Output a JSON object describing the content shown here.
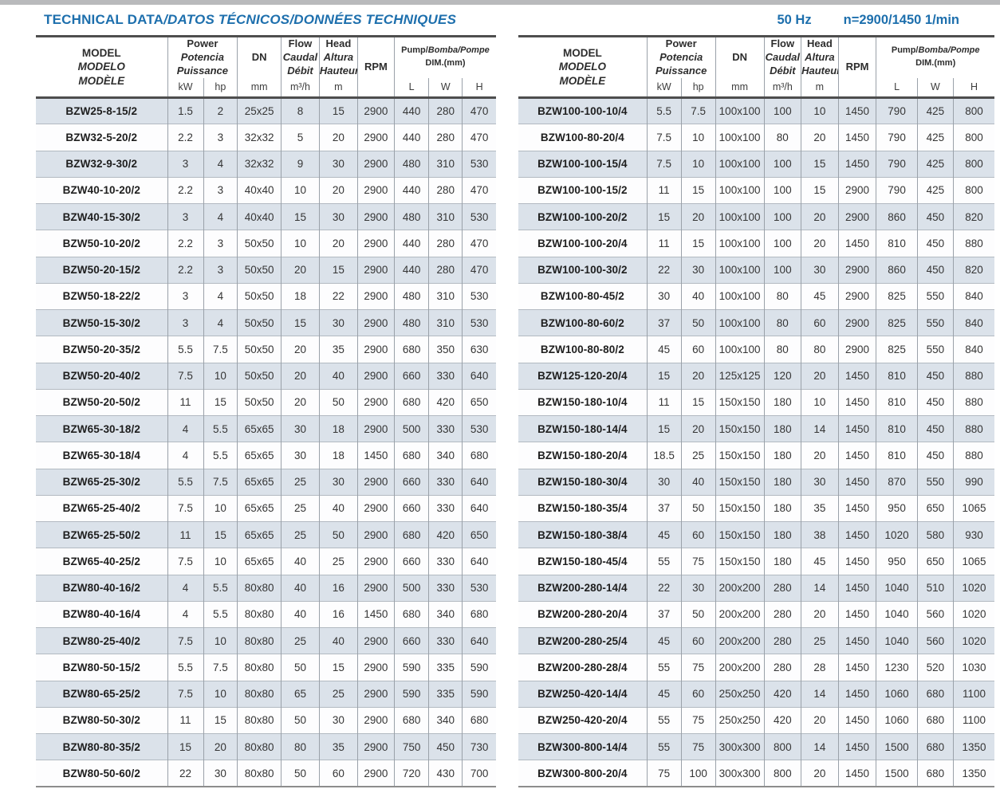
{
  "page": {
    "title_en": "TECHNICAL DATA",
    "title_i18n": "/DATOS TÉCNICOS/DONNÉES TECHNIQUES",
    "frequency": "50 Hz",
    "speed": "n=2900/1450 1/min"
  },
  "colors": {
    "accent_blue": "#1d6fad",
    "rule_dark": "#4e4e4e",
    "rule_bottom": "#8d8d8d",
    "grid_v": "#9aa1a9",
    "grid_h": "#b2b9c1",
    "row_shade": "#dbe2ea",
    "scan_edge": "#b9babc",
    "text_dark": "#3a3a3a"
  },
  "header": {
    "model": [
      "MODEL",
      "MODELO",
      "MODÈLE"
    ],
    "power": [
      "Power",
      "Potencia",
      "Puissance"
    ],
    "dn": "DN",
    "flow": [
      "Flow",
      "Caudal",
      "Débit"
    ],
    "head_col": [
      "Head",
      "Altura",
      "Hauteur"
    ],
    "rpm": "RPM",
    "pump_en": "Pump/",
    "pump_i18n": "Bomba/Pompe",
    "dim_label": "DIM.(mm)",
    "units": {
      "kw": "kW",
      "hp": "hp",
      "dn": "mm",
      "flow": "m³/h",
      "head": "m",
      "l": "L",
      "w": "W",
      "h": "H"
    }
  },
  "left_table": {
    "rows": [
      [
        "BZW25-8-15/2",
        "1.5",
        "2",
        "25x25",
        "8",
        "15",
        "2900",
        "440",
        "280",
        "470"
      ],
      [
        "BZW32-5-20/2",
        "2.2",
        "3",
        "32x32",
        "5",
        "20",
        "2900",
        "440",
        "280",
        "470"
      ],
      [
        "BZW32-9-30/2",
        "3",
        "4",
        "32x32",
        "9",
        "30",
        "2900",
        "480",
        "310",
        "530"
      ],
      [
        "BZW40-10-20/2",
        "2.2",
        "3",
        "40x40",
        "10",
        "20",
        "2900",
        "440",
        "280",
        "470"
      ],
      [
        "BZW40-15-30/2",
        "3",
        "4",
        "40x40",
        "15",
        "30",
        "2900",
        "480",
        "310",
        "530"
      ],
      [
        "BZW50-10-20/2",
        "2.2",
        "3",
        "50x50",
        "10",
        "20",
        "2900",
        "440",
        "280",
        "470"
      ],
      [
        "BZW50-20-15/2",
        "2.2",
        "3",
        "50x50",
        "20",
        "15",
        "2900",
        "440",
        "280",
        "470"
      ],
      [
        "BZW50-18-22/2",
        "3",
        "4",
        "50x50",
        "18",
        "22",
        "2900",
        "480",
        "310",
        "530"
      ],
      [
        "BZW50-15-30/2",
        "3",
        "4",
        "50x50",
        "15",
        "30",
        "2900",
        "480",
        "310",
        "530"
      ],
      [
        "BZW50-20-35/2",
        "5.5",
        "7.5",
        "50x50",
        "20",
        "35",
        "2900",
        "680",
        "350",
        "630"
      ],
      [
        "BZW50-20-40/2",
        "7.5",
        "10",
        "50x50",
        "20",
        "40",
        "2900",
        "660",
        "330",
        "640"
      ],
      [
        "BZW50-20-50/2",
        "11",
        "15",
        "50x50",
        "20",
        "50",
        "2900",
        "680",
        "420",
        "650"
      ],
      [
        "BZW65-30-18/2",
        "4",
        "5.5",
        "65x65",
        "30",
        "18",
        "2900",
        "500",
        "330",
        "530"
      ],
      [
        "BZW65-30-18/4",
        "4",
        "5.5",
        "65x65",
        "30",
        "18",
        "1450",
        "680",
        "340",
        "680"
      ],
      [
        "BZW65-25-30/2",
        "5.5",
        "7.5",
        "65x65",
        "25",
        "30",
        "2900",
        "660",
        "330",
        "640"
      ],
      [
        "BZW65-25-40/2",
        "7.5",
        "10",
        "65x65",
        "25",
        "40",
        "2900",
        "660",
        "330",
        "640"
      ],
      [
        "BZW65-25-50/2",
        "11",
        "15",
        "65x65",
        "25",
        "50",
        "2900",
        "680",
        "420",
        "650"
      ],
      [
        "BZW65-40-25/2",
        "7.5",
        "10",
        "65x65",
        "40",
        "25",
        "2900",
        "660",
        "330",
        "640"
      ],
      [
        "BZW80-40-16/2",
        "4",
        "5.5",
        "80x80",
        "40",
        "16",
        "2900",
        "500",
        "330",
        "530"
      ],
      [
        "BZW80-40-16/4",
        "4",
        "5.5",
        "80x80",
        "40",
        "16",
        "1450",
        "680",
        "340",
        "680"
      ],
      [
        "BZW80-25-40/2",
        "7.5",
        "10",
        "80x80",
        "25",
        "40",
        "2900",
        "660",
        "330",
        "640"
      ],
      [
        "BZW80-50-15/2",
        "5.5",
        "7.5",
        "80x80",
        "50",
        "15",
        "2900",
        "590",
        "335",
        "590"
      ],
      [
        "BZW80-65-25/2",
        "7.5",
        "10",
        "80x80",
        "65",
        "25",
        "2900",
        "590",
        "335",
        "590"
      ],
      [
        "BZW80-50-30/2",
        "11",
        "15",
        "80x80",
        "50",
        "30",
        "2900",
        "680",
        "340",
        "680"
      ],
      [
        "BZW80-80-35/2",
        "15",
        "20",
        "80x80",
        "80",
        "35",
        "2900",
        "750",
        "450",
        "730"
      ],
      [
        "BZW80-50-60/2",
        "22",
        "30",
        "80x80",
        "50",
        "60",
        "2900",
        "720",
        "430",
        "700"
      ]
    ]
  },
  "right_table": {
    "rows": [
      [
        "BZW100-100-10/4",
        "5.5",
        "7.5",
        "100x100",
        "100",
        "10",
        "1450",
        "790",
        "425",
        "800"
      ],
      [
        "BZW100-80-20/4",
        "7.5",
        "10",
        "100x100",
        "80",
        "20",
        "1450",
        "790",
        "425",
        "800"
      ],
      [
        "BZW100-100-15/4",
        "7.5",
        "10",
        "100x100",
        "100",
        "15",
        "1450",
        "790",
        "425",
        "800"
      ],
      [
        "BZW100-100-15/2",
        "11",
        "15",
        "100x100",
        "100",
        "15",
        "2900",
        "790",
        "425",
        "800"
      ],
      [
        "BZW100-100-20/2",
        "15",
        "20",
        "100x100",
        "100",
        "20",
        "2900",
        "860",
        "450",
        "820"
      ],
      [
        "BZW100-100-20/4",
        "11",
        "15",
        "100x100",
        "100",
        "20",
        "1450",
        "810",
        "450",
        "880"
      ],
      [
        "BZW100-100-30/2",
        "22",
        "30",
        "100x100",
        "100",
        "30",
        "2900",
        "860",
        "450",
        "820"
      ],
      [
        "BZW100-80-45/2",
        "30",
        "40",
        "100x100",
        "80",
        "45",
        "2900",
        "825",
        "550",
        "840"
      ],
      [
        "BZW100-80-60/2",
        "37",
        "50",
        "100x100",
        "80",
        "60",
        "2900",
        "825",
        "550",
        "840"
      ],
      [
        "BZW100-80-80/2",
        "45",
        "60",
        "100x100",
        "80",
        "80",
        "2900",
        "825",
        "550",
        "840"
      ],
      [
        "BZW125-120-20/4",
        "15",
        "20",
        "125x125",
        "120",
        "20",
        "1450",
        "810",
        "450",
        "880"
      ],
      [
        "BZW150-180-10/4",
        "11",
        "15",
        "150x150",
        "180",
        "10",
        "1450",
        "810",
        "450",
        "880"
      ],
      [
        "BZW150-180-14/4",
        "15",
        "20",
        "150x150",
        "180",
        "14",
        "1450",
        "810",
        "450",
        "880"
      ],
      [
        "BZW150-180-20/4",
        "18.5",
        "25",
        "150x150",
        "180",
        "20",
        "1450",
        "810",
        "450",
        "880"
      ],
      [
        "BZW150-180-30/4",
        "30",
        "40",
        "150x150",
        "180",
        "30",
        "1450",
        "870",
        "550",
        "990"
      ],
      [
        "BZW150-180-35/4",
        "37",
        "50",
        "150x150",
        "180",
        "35",
        "1450",
        "950",
        "650",
        "1065"
      ],
      [
        "BZW150-180-38/4",
        "45",
        "60",
        "150x150",
        "180",
        "38",
        "1450",
        "1020",
        "580",
        "930"
      ],
      [
        "BZW150-180-45/4",
        "55",
        "75",
        "150x150",
        "180",
        "45",
        "1450",
        "950",
        "650",
        "1065"
      ],
      [
        "BZW200-280-14/4",
        "22",
        "30",
        "200x200",
        "280",
        "14",
        "1450",
        "1040",
        "510",
        "1020"
      ],
      [
        "BZW200-280-20/4",
        "37",
        "50",
        "200x200",
        "280",
        "20",
        "1450",
        "1040",
        "560",
        "1020"
      ],
      [
        "BZW200-280-25/4",
        "45",
        "60",
        "200x200",
        "280",
        "25",
        "1450",
        "1040",
        "560",
        "1020"
      ],
      [
        "BZW200-280-28/4",
        "55",
        "75",
        "200x200",
        "280",
        "28",
        "1450",
        "1230",
        "520",
        "1030"
      ],
      [
        "BZW250-420-14/4",
        "45",
        "60",
        "250x250",
        "420",
        "14",
        "1450",
        "1060",
        "680",
        "1100"
      ],
      [
        "BZW250-420-20/4",
        "55",
        "75",
        "250x250",
        "420",
        "20",
        "1450",
        "1060",
        "680",
        "1100"
      ],
      [
        "BZW300-800-14/4",
        "55",
        "75",
        "300x300",
        "800",
        "14",
        "1450",
        "1500",
        "680",
        "1350"
      ],
      [
        "BZW300-800-20/4",
        "75",
        "100",
        "300x300",
        "800",
        "20",
        "1450",
        "1500",
        "680",
        "1350"
      ]
    ]
  }
}
